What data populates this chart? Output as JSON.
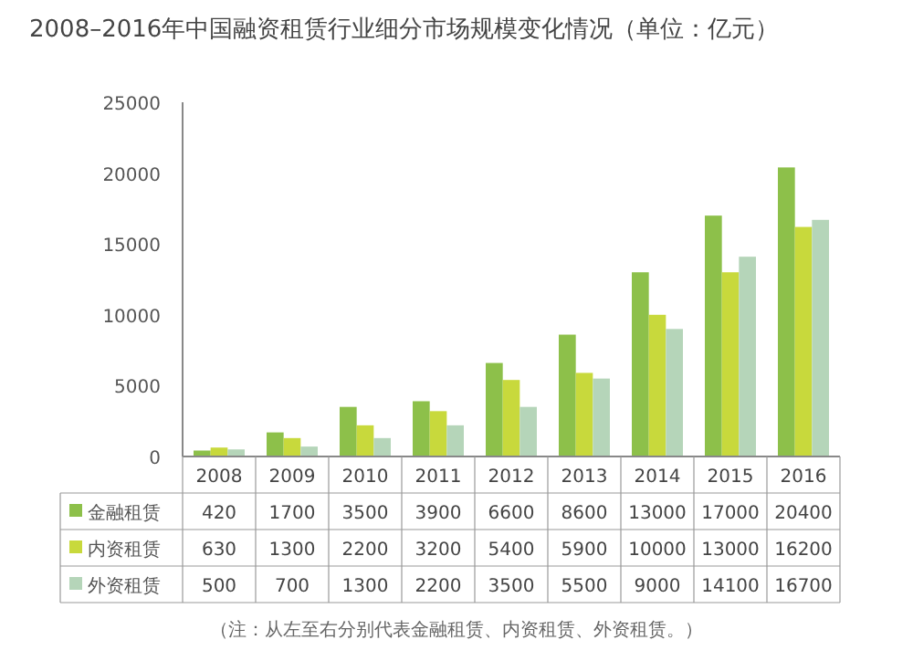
{
  "chart_data": {
    "type": "bar",
    "title": "2008–2016年中国融资租赁行业细分市场规模变化情况（单位：亿元）",
    "categories": [
      "2008",
      "2009",
      "2010",
      "2011",
      "2012",
      "2013",
      "2014",
      "2015",
      "2016"
    ],
    "series": [
      {
        "name": "金融租赁",
        "color": "#8dc04a",
        "values": [
          420,
          1700,
          3500,
          3900,
          6600,
          8600,
          13000,
          17000,
          20400
        ]
      },
      {
        "name": "内资租赁",
        "color": "#c8d93c",
        "values": [
          630,
          1300,
          2200,
          3200,
          5400,
          5900,
          10000,
          13000,
          16200
        ]
      },
      {
        "name": "外资租赁",
        "color": "#b5d5b9",
        "values": [
          500,
          700,
          1300,
          2200,
          3500,
          5500,
          9000,
          14100,
          16700
        ]
      }
    ],
    "ylim": [
      0,
      25000
    ],
    "yticks": [
      0,
      5000,
      10000,
      15000,
      20000,
      25000
    ],
    "data_labels": true,
    "legend": "bottom left",
    "grid": false,
    "annotations": [
      "（注：从左至右分别代表金融租赁、内资租赁、外资租赁。）"
    ]
  }
}
